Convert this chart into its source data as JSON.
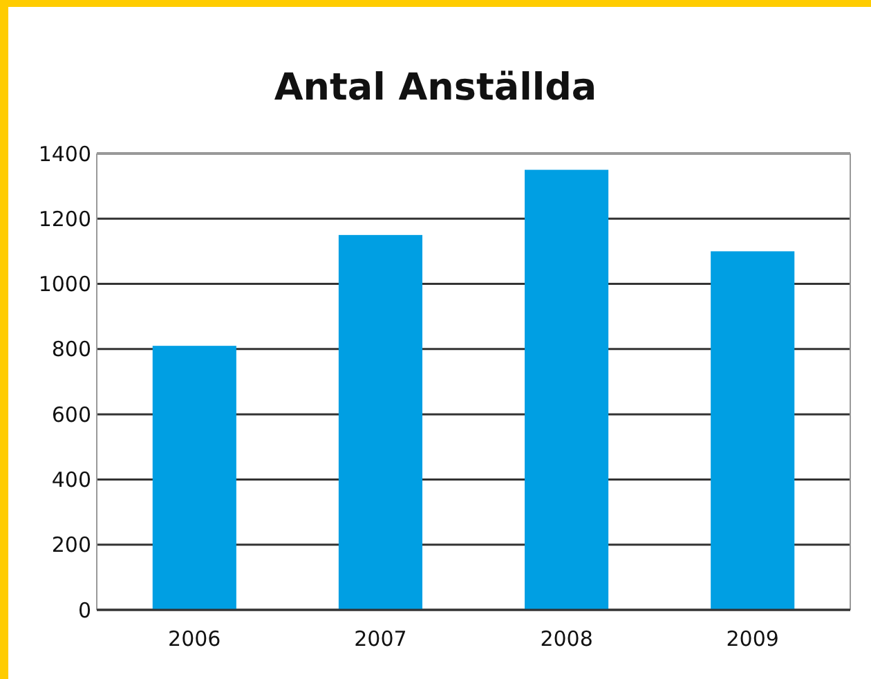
{
  "chart_data": {
    "type": "bar",
    "title": "Antal Anställda",
    "categories": [
      "2006",
      "2007",
      "2008",
      "2009"
    ],
    "values": [
      810,
      1150,
      1350,
      1100
    ],
    "color": "#009fe3",
    "ylim": [
      0,
      1400
    ],
    "yticks": [
      0,
      200,
      400,
      600,
      800,
      1000,
      1200,
      1400
    ],
    "grid": "y"
  }
}
